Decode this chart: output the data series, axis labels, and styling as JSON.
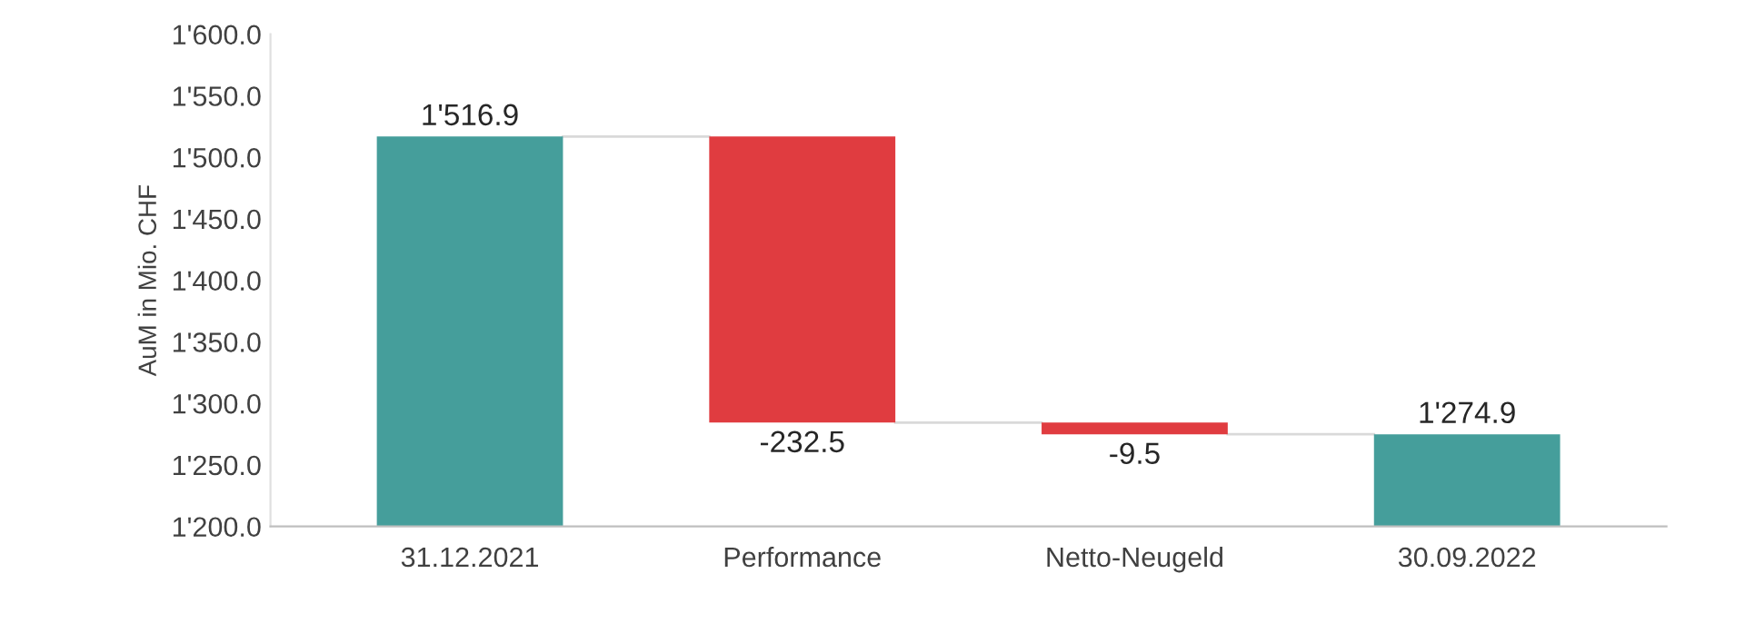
{
  "chart_data": {
    "type": "bar",
    "ylabel": "AuM in Mio. CHF",
    "categories": [
      "31.12.2021",
      "Performance",
      "Netto-Neugeld",
      "30.09.2022"
    ],
    "values": [
      1516.9,
      -232.5,
      -9.5,
      1274.9
    ],
    "base": [
      null,
      1516.9,
      1284.4,
      null
    ],
    "colors": [
      "#459e9b",
      "#e03c40",
      "#e03c40",
      "#459e9b"
    ],
    "value_labels": [
      "1'516.9",
      "-232.5",
      "-9.5",
      "1'274.9"
    ],
    "ylim": [
      1200,
      1600
    ],
    "yticks": [
      {
        "value": 1200,
        "label": "1'200.0"
      },
      {
        "value": 1250,
        "label": "1'250.0"
      },
      {
        "value": 1300,
        "label": "1'300.0"
      },
      {
        "value": 1350,
        "label": "1'350.0"
      },
      {
        "value": 1400,
        "label": "1'400.0"
      },
      {
        "value": 1450,
        "label": "1'450.0"
      },
      {
        "value": 1500,
        "label": "1'500.0"
      },
      {
        "value": 1550,
        "label": "1'550.0"
      },
      {
        "value": 1600,
        "label": "1'600.0"
      }
    ],
    "grid": false,
    "legend": false
  }
}
